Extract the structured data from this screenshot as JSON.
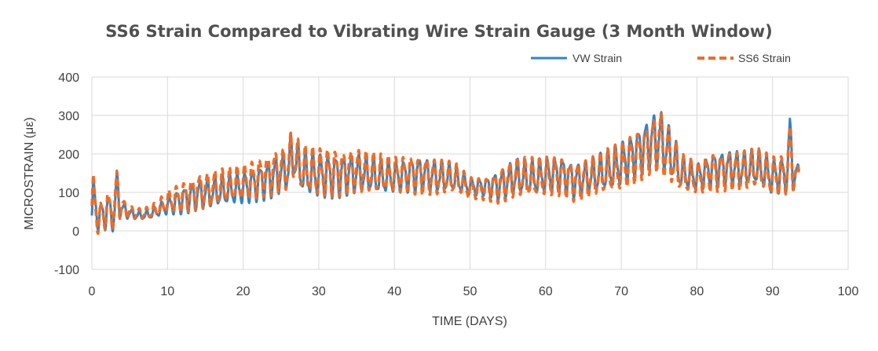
{
  "chart_data": {
    "type": "line",
    "title": "SS6 Strain Compared to Vibrating Wire Strain Gauge (3 Month Window)",
    "xlabel": "TIME (DAYS)",
    "ylabel": "MICROSTRAIN (με)",
    "xlim": [
      0,
      100
    ],
    "ylim": [
      -100,
      400
    ],
    "x_ticks": [
      "0",
      "10",
      "20",
      "30",
      "40",
      "50",
      "60",
      "70",
      "80",
      "90",
      "100"
    ],
    "y_ticks": [
      "-100",
      "0",
      "100",
      "200",
      "300",
      "400"
    ],
    "grid": true,
    "legend_position": "top-right",
    "daily_cycle_period_days": 1,
    "series": [
      {
        "name": "VW Strain",
        "color": "#2e86c8",
        "style": "solid",
        "x": [
          0,
          0.2,
          1,
          2,
          3,
          3.3,
          4,
          5,
          6,
          7,
          8,
          9,
          10,
          12,
          14,
          16,
          18,
          20,
          22,
          24,
          26,
          26.3,
          28,
          30,
          32,
          35,
          38,
          40,
          43,
          46,
          48,
          50,
          52,
          54,
          56,
          58,
          60,
          62,
          64,
          66,
          68,
          70,
          72,
          74,
          75,
          76,
          78,
          80,
          82,
          84,
          86,
          88,
          90,
          92,
          92.3,
          93,
          93.5
        ],
        "mid": [
          40,
          90,
          30,
          55,
          40,
          110,
          55,
          45,
          40,
          40,
          45,
          55,
          65,
          80,
          95,
          100,
          105,
          110,
          125,
          140,
          160,
          200,
          150,
          145,
          145,
          150,
          140,
          140,
          150,
          140,
          135,
          115,
          115,
          120,
          140,
          135,
          145,
          150,
          130,
          140,
          155,
          175,
          205,
          235,
          240,
          215,
          150,
          140,
          160,
          165,
          160,
          165,
          140,
          150,
          240,
          130,
          150
        ],
        "amp": [
          25,
          45,
          35,
          40,
          35,
          55,
          20,
          12,
          10,
          10,
          12,
          15,
          20,
          30,
          35,
          35,
          35,
          35,
          40,
          45,
          45,
          45,
          50,
          50,
          50,
          45,
          40,
          35,
          40,
          35,
          30,
          20,
          20,
          35,
          40,
          40,
          40,
          40,
          40,
          40,
          45,
          50,
          55,
          60,
          70,
          60,
          40,
          30,
          40,
          40,
          40,
          40,
          40,
          40,
          70,
          40,
          30
        ]
      },
      {
        "name": "SS6 Strain",
        "color": "#f26b22",
        "style": "dashed",
        "x": [
          0,
          0.2,
          1,
          2,
          3,
          3.3,
          4,
          5,
          6,
          7,
          8,
          9,
          10,
          12,
          14,
          16,
          18,
          20,
          22,
          24,
          26,
          26.3,
          28,
          30,
          32,
          35,
          38,
          40,
          43,
          46,
          48,
          50,
          52,
          54,
          56,
          58,
          60,
          62,
          64,
          66,
          68,
          70,
          72,
          74,
          75,
          76,
          78,
          80,
          82,
          84,
          86,
          88,
          90,
          92,
          92.3,
          93,
          93.5
        ],
        "mid": [
          55,
          85,
          25,
          60,
          50,
          110,
          60,
          50,
          45,
          45,
          50,
          60,
          75,
          90,
          105,
          110,
          115,
          125,
          140,
          155,
          165,
          200,
          155,
          150,
          155,
          160,
          145,
          145,
          150,
          140,
          135,
          110,
          110,
          120,
          140,
          135,
          140,
          145,
          130,
          140,
          150,
          165,
          195,
          225,
          240,
          205,
          145,
          135,
          155,
          160,
          155,
          160,
          140,
          150,
          230,
          130,
          145
        ],
        "amp": [
          40,
          55,
          40,
          40,
          40,
          60,
          25,
          15,
          12,
          12,
          15,
          20,
          25,
          35,
          40,
          40,
          40,
          40,
          45,
          50,
          50,
          50,
          55,
          55,
          55,
          50,
          45,
          40,
          45,
          40,
          35,
          25,
          25,
          40,
          45,
          45,
          45,
          45,
          45,
          45,
          50,
          55,
          60,
          60,
          75,
          65,
          45,
          35,
          45,
          45,
          45,
          45,
          45,
          45,
          65,
          45,
          35
        ]
      }
    ]
  }
}
